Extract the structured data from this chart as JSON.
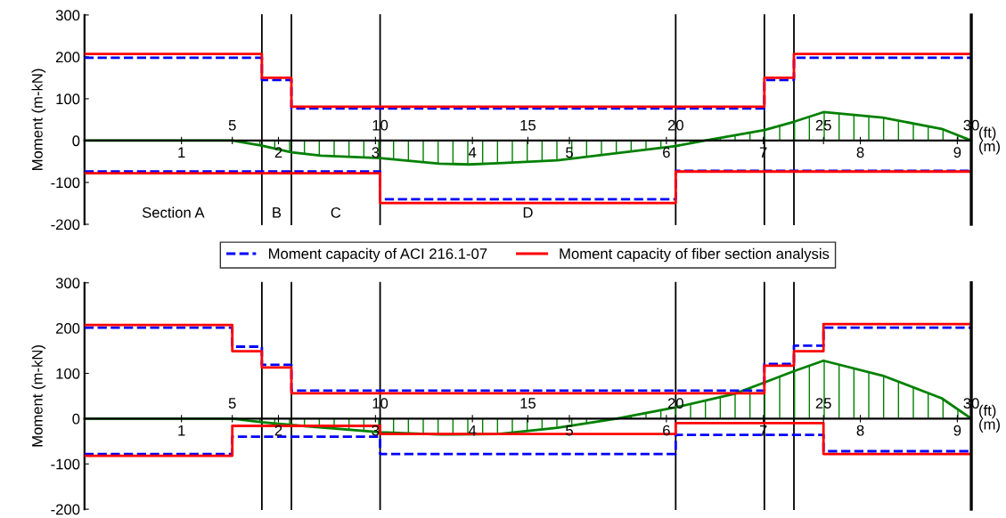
{
  "chart_data": [
    {
      "type": "step",
      "ylabel": "Moment (m-kN)",
      "xlabel": "(ft)",
      "x2label": "(m)",
      "xlim": [
        0,
        30
      ],
      "xticks": [
        5,
        10,
        15,
        20,
        25,
        30
      ],
      "x2lim": [
        0,
        9.144
      ],
      "x2ticks": [
        1,
        2,
        3,
        4,
        5,
        6,
        7,
        8,
        9
      ],
      "ylim": [
        -200,
        300
      ],
      "yticks": [
        -200,
        -100,
        0,
        100,
        200,
        300
      ],
      "grid": false,
      "legend": "bottom",
      "line_style": "solid",
      "series": [
        {
          "name": "Moment capacity of ACI 216.1-07",
          "color": "#0000ff",
          "line_style": "dashed",
          "x": [
            0,
            6,
            7,
            23,
            24,
            30
          ],
          "values": [
            198,
            145,
            77,
            145,
            198,
            198
          ]
        },
        {
          "name": "Moment capacity of fiber section analysis",
          "color": "#ff0000",
          "x": [
            0,
            6,
            7,
            23,
            24,
            30
          ],
          "values": [
            207,
            150,
            81,
            150,
            207,
            207
          ]
        },
        {
          "color": "#0000ff",
          "line_style": "dashed",
          "x": [
            0,
            10,
            20,
            30
          ],
          "values": [
            -74,
            -140,
            -72,
            -72
          ]
        },
        {
          "color": "#ff0000",
          "x": [
            0,
            10,
            20,
            30
          ],
          "values": [
            -78,
            -149,
            -74,
            -74
          ]
        },
        {
          "type": "area",
          "color": "#008000",
          "x": [
            0,
            5,
            6,
            7,
            8,
            10,
            12,
            13,
            14,
            16,
            18,
            20,
            21,
            23,
            24,
            25,
            27,
            29,
            30
          ],
          "values": [
            0,
            0,
            -12,
            -28,
            -36,
            -42,
            -55,
            -57,
            -54,
            -47,
            -30,
            -13,
            0,
            25,
            45,
            68,
            55,
            28,
            0
          ]
        }
      ],
      "ref_lines": [
        {
          "axis": "x",
          "value": 6
        },
        {
          "axis": "x",
          "value": 7
        },
        {
          "axis": "x",
          "value": 10
        },
        {
          "axis": "x",
          "value": 20
        },
        {
          "axis": "x",
          "value": 23
        },
        {
          "axis": "x",
          "value": 24
        },
        {
          "axis": "x",
          "value": 30
        }
      ],
      "annotations": [
        "Section A",
        "B",
        "C",
        "D"
      ]
    },
    {
      "type": "step",
      "ylabel": "Moment (m-kN)",
      "xlabel": "(ft)",
      "x2label": "(m)",
      "xlim": [
        0,
        30
      ],
      "xticks": [
        5,
        10,
        15,
        20,
        25,
        30
      ],
      "x2lim": [
        0,
        9.144
      ],
      "x2ticks": [
        1,
        2,
        3,
        4,
        5,
        6,
        7,
        8,
        9
      ],
      "ylim": [
        -200,
        300
      ],
      "yticks": [
        -200,
        -100,
        0,
        100,
        200,
        300
      ],
      "grid": false,
      "line_style": "solid",
      "series": [
        {
          "color": "#0000ff",
          "line_style": "dashed",
          "x": [
            0,
            5,
            6,
            7,
            23,
            24,
            25,
            30
          ],
          "values": [
            201,
            159,
            119,
            62,
            121,
            161,
            201,
            201
          ]
        },
        {
          "color": "#ff0000",
          "x": [
            0,
            5,
            6,
            7,
            23,
            24,
            25,
            30
          ],
          "values": [
            207,
            149,
            113,
            56,
            117,
            149,
            209,
            209
          ]
        },
        {
          "color": "#0000ff",
          "line_style": "dashed",
          "x": [
            0,
            5,
            10,
            20,
            25,
            30
          ],
          "values": [
            -78,
            -40,
            -78,
            -36,
            -72,
            -72
          ]
        },
        {
          "color": "#ff0000",
          "x": [
            0,
            5,
            10,
            20,
            25,
            30
          ],
          "values": [
            -82,
            -16,
            -34,
            -10,
            -78,
            -78
          ]
        },
        {
          "type": "area",
          "color": "#008000",
          "x": [
            0,
            5,
            6,
            7,
            10,
            12,
            14,
            16,
            18,
            20,
            22,
            23,
            24,
            25,
            27,
            29,
            30
          ],
          "values": [
            0,
            0,
            -8,
            -14,
            -30,
            -35,
            -34,
            -20,
            0,
            25,
            55,
            80,
            105,
            128,
            95,
            45,
            0
          ]
        }
      ],
      "ref_lines": [
        {
          "axis": "x",
          "value": 6
        },
        {
          "axis": "x",
          "value": 7
        },
        {
          "axis": "x",
          "value": 10
        },
        {
          "axis": "x",
          "value": 20
        },
        {
          "axis": "x",
          "value": 23
        },
        {
          "axis": "x",
          "value": 24
        },
        {
          "axis": "x",
          "value": 30
        }
      ]
    }
  ]
}
